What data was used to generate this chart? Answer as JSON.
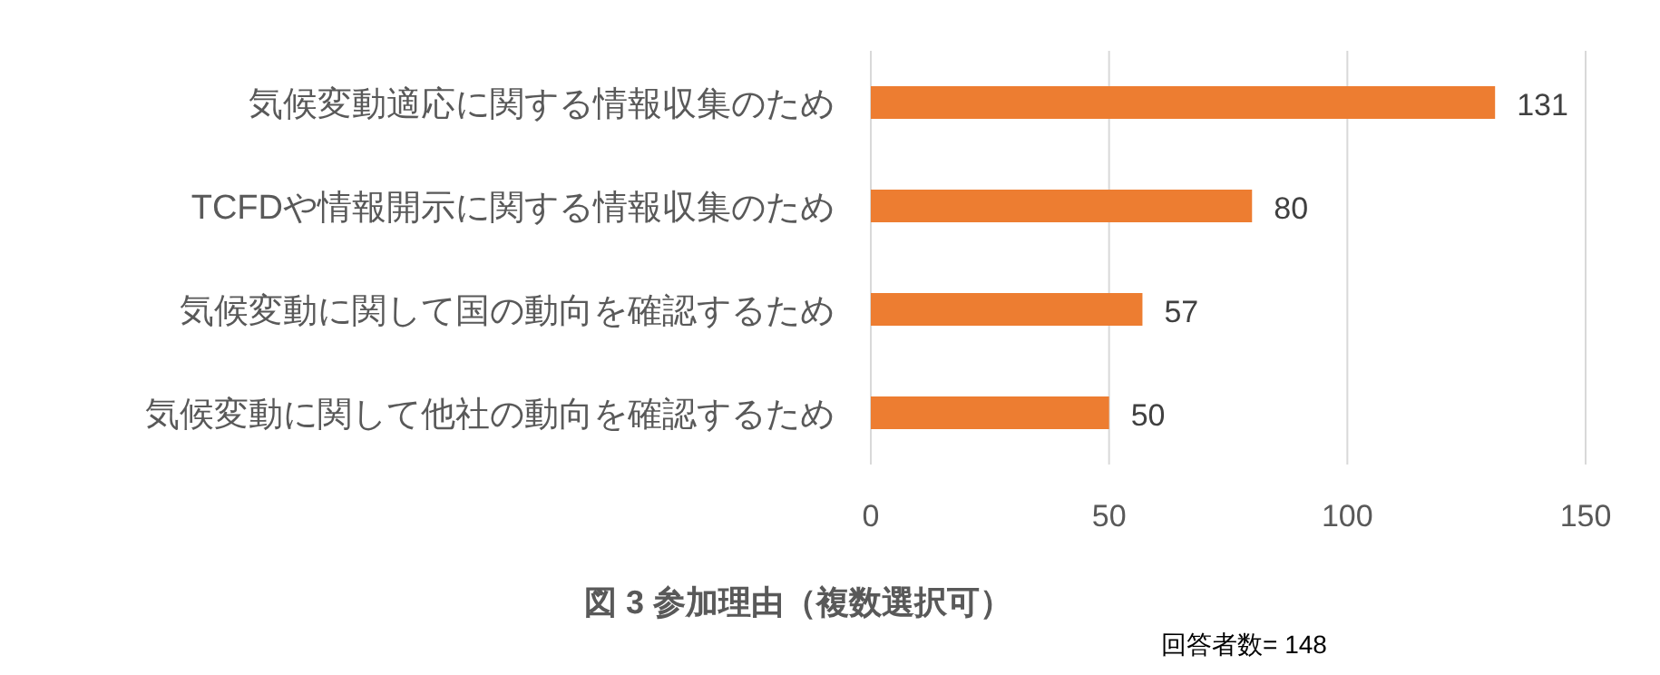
{
  "chart_data": {
    "type": "bar",
    "orientation": "horizontal",
    "title": "図 3 参加理由（複数選択可）",
    "annotations": [
      "回答者数= 148"
    ],
    "categories": [
      "気候変動適応に関する情報収集のため",
      "TCFDや情報開示に関する情報収集のため",
      "気候変動に関して国の動向を確認するため",
      "気候変動に関して他社の動向を確認するため"
    ],
    "values": [
      131,
      80,
      57,
      50
    ],
    "color": "#ed7d31",
    "xlim": [
      0,
      150
    ],
    "xticks": [
      0,
      50,
      100,
      150
    ],
    "grid": "x",
    "data_labels": true
  }
}
